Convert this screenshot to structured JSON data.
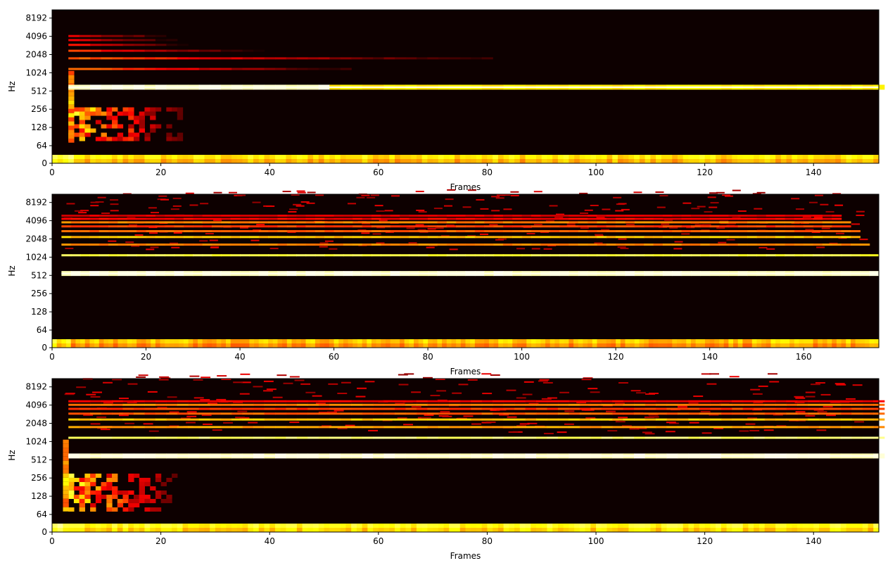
{
  "chart_data": [
    {
      "type": "heatmap",
      "xlabel": "Frames",
      "ylabel": "Hz",
      "xlim": [
        0,
        152
      ],
      "xticks": [
        0,
        20,
        40,
        60,
        80,
        100,
        120,
        140
      ],
      "yticks": [
        "0",
        "64",
        "128",
        "256",
        "512",
        "1024",
        "2048",
        "4096",
        "8192"
      ],
      "colormap": "hot",
      "background_color": "#0d0000",
      "onset_frame": 3,
      "harmonic_bands": [
        {
          "freq_hz": 430,
          "start": 3,
          "end": 152,
          "level": 0.95
        },
        {
          "freq_hz": 860,
          "start": 3,
          "end": 55,
          "level": 0.55
        },
        {
          "freq_hz": 1290,
          "start": 3,
          "end": 80,
          "level": 0.5
        },
        {
          "freq_hz": 1720,
          "start": 3,
          "end": 38,
          "level": 0.45
        },
        {
          "freq_hz": 2150,
          "start": 3,
          "end": 25,
          "level": 0.4
        },
        {
          "freq_hz": 2580,
          "start": 3,
          "end": 22,
          "level": 0.35
        },
        {
          "freq_hz": 3010,
          "start": 3,
          "end": 23,
          "level": 0.3
        }
      ],
      "low_freq_blob": {
        "start": 3,
        "end": 24,
        "freq_low_hz": 48,
        "freq_high_hz": 200
      },
      "dc_band": {
        "start": 0,
        "end": 152,
        "level": 0.7
      }
    },
    {
      "type": "heatmap",
      "xlabel": "Frames",
      "ylabel": "Hz",
      "xlim": [
        0,
        176
      ],
      "xticks": [
        0,
        20,
        40,
        60,
        80,
        100,
        120,
        140,
        160
      ],
      "yticks": [
        "0",
        "64",
        "128",
        "256",
        "512",
        "1024",
        "2048",
        "4096",
        "8192"
      ],
      "colormap": "hot",
      "background_color": "#0d0000",
      "onset_frame": 2,
      "harmonic_bands": [
        {
          "freq_hz": 400,
          "start": 2,
          "end": 176,
          "level": 0.95
        },
        {
          "freq_hz": 800,
          "start": 2,
          "end": 175,
          "level": 0.8
        },
        {
          "freq_hz": 1200,
          "start": 2,
          "end": 173,
          "level": 0.55
        },
        {
          "freq_hz": 1600,
          "start": 2,
          "end": 172,
          "level": 0.65
        },
        {
          "freq_hz": 2000,
          "start": 2,
          "end": 171,
          "level": 0.5
        },
        {
          "freq_hz": 2400,
          "start": 2,
          "end": 170,
          "level": 0.45
        },
        {
          "freq_hz": 2800,
          "start": 2,
          "end": 169,
          "level": 0.55
        },
        {
          "freq_hz": 3200,
          "start": 2,
          "end": 168,
          "level": 0.35
        },
        {
          "freq_hz": 3600,
          "start": 2,
          "end": 168,
          "level": 0.3
        }
      ],
      "dc_band": {
        "start": 0,
        "end": 176,
        "level": 0.65
      }
    },
    {
      "type": "heatmap",
      "xlabel": "Frames",
      "ylabel": "Hz",
      "xlim": [
        0,
        152
      ],
      "xticks": [
        0,
        20,
        40,
        60,
        80,
        100,
        120,
        140
      ],
      "yticks": [
        "0",
        "64",
        "128",
        "256",
        "512",
        "1024",
        "2048",
        "4096",
        "8192"
      ],
      "colormap": "hot",
      "background_color": "#0d0000",
      "onset_frame": 2,
      "harmonic_bands": [
        {
          "freq_hz": 430,
          "start": 3,
          "end": 152,
          "level": 0.95
        },
        {
          "freq_hz": 860,
          "start": 3,
          "end": 152,
          "level": 0.85
        },
        {
          "freq_hz": 1290,
          "start": 3,
          "end": 152,
          "level": 0.6
        },
        {
          "freq_hz": 1720,
          "start": 3,
          "end": 152,
          "level": 0.65
        },
        {
          "freq_hz": 2150,
          "start": 3,
          "end": 152,
          "level": 0.5
        },
        {
          "freq_hz": 2580,
          "start": 3,
          "end": 152,
          "level": 0.45
        },
        {
          "freq_hz": 3010,
          "start": 3,
          "end": 152,
          "level": 0.55
        },
        {
          "freq_hz": 3440,
          "start": 3,
          "end": 152,
          "level": 0.35
        }
      ],
      "low_freq_blob": {
        "start": 3,
        "end": 24,
        "freq_low_hz": 48,
        "freq_high_hz": 220
      },
      "dc_band": {
        "start": 0,
        "end": 152,
        "level": 0.75
      }
    }
  ]
}
